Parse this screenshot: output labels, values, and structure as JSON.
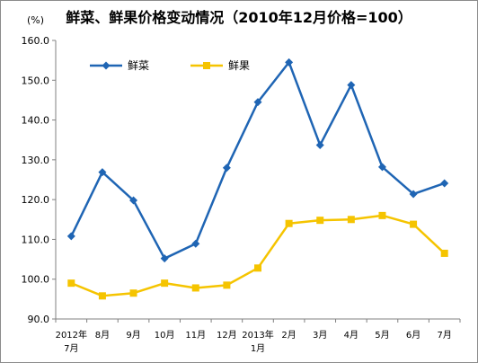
{
  "chart_data": {
    "type": "line",
    "title": "鲜菜、鲜果价格变动情况（2010年12月价格=100）",
    "ylabel": "(%)",
    "xlabel": "",
    "categories": [
      [
        "2012年",
        "7月"
      ],
      [
        "8月"
      ],
      [
        "9月"
      ],
      [
        "10月"
      ],
      [
        "11月"
      ],
      [
        "12月"
      ],
      [
        "2013年",
        "1月"
      ],
      [
        "2月"
      ],
      [
        "3月"
      ],
      [
        "4月"
      ],
      [
        "5月"
      ],
      [
        "6月"
      ],
      [
        "7月"
      ]
    ],
    "ylim": [
      90.0,
      160.0
    ],
    "yticks": [
      "90.0",
      "100.0",
      "110.0",
      "120.0",
      "130.0",
      "140.0",
      "150.0",
      "160.0"
    ],
    "grid": false,
    "legend": "top-left",
    "series": [
      {
        "name": "鲜菜",
        "color": "#1f65b4",
        "marker": "diamond",
        "values": [
          110.8,
          126.9,
          119.8,
          105.2,
          108.9,
          128.0,
          144.5,
          154.5,
          133.7,
          148.8,
          128.2,
          121.4,
          124.1
        ]
      },
      {
        "name": "鲜果",
        "color": "#f5c400",
        "marker": "square",
        "values": [
          99.0,
          95.8,
          96.5,
          99.0,
          97.8,
          98.5,
          102.8,
          114.0,
          114.8,
          115.0,
          116.0,
          113.8,
          106.5
        ]
      }
    ]
  }
}
